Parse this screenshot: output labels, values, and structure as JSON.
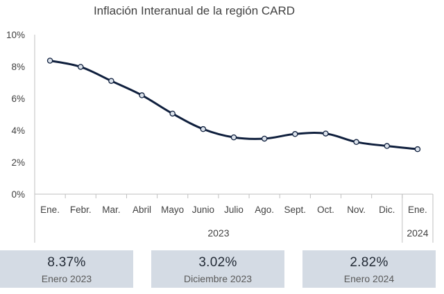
{
  "title": "Inflación Interanual de la región CARD",
  "chart_data": {
    "type": "line",
    "title": "Inflación Interanual de la región CARD",
    "categories": [
      "Ene.",
      "Febr.",
      "Mar.",
      "Abril",
      "Mayo",
      "Junio",
      "Julio",
      "Ago.",
      "Sept.",
      "Oct.",
      "Nov.",
      "Dic.",
      "Ene."
    ],
    "year_groups": [
      {
        "label": "2023",
        "count": 12
      },
      {
        "label": "2024",
        "count": 1
      }
    ],
    "series": [
      {
        "values": [
          8.37,
          7.98,
          7.1,
          6.2,
          5.05,
          4.08,
          3.56,
          3.48,
          3.77,
          3.8,
          3.27,
          3.02,
          2.82
        ]
      }
    ],
    "y_ticks": [
      "0%",
      "2%",
      "4%",
      "6%",
      "8%",
      "10%"
    ],
    "ylim": [
      0,
      10
    ],
    "line_color": "#0f1f3d",
    "marker_fill": "#dce3ec",
    "grid": false,
    "legend": "none"
  },
  "cards": [
    {
      "value": "8.37%",
      "label": "Enero 2023"
    },
    {
      "value": "3.02%",
      "label": "Diciembre 2023"
    },
    {
      "value": "2.82%",
      "label": "Enero 2024"
    }
  ],
  "colors": {
    "card_bg": "#d4dbe4",
    "axis": "#bfbfbf"
  }
}
